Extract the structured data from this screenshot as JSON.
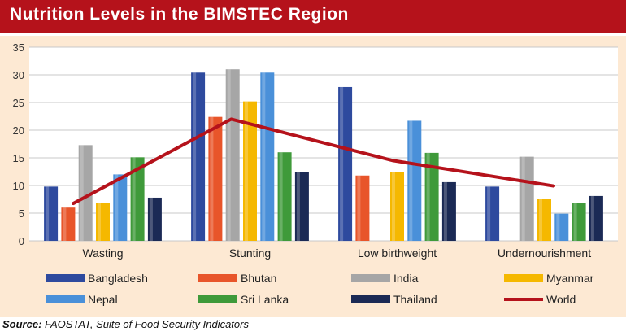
{
  "header": {
    "title": "Nutrition Levels in the BIMSTEC Region"
  },
  "source": {
    "label": "Source:",
    "text": " FAOSTAT, Suite of Food Security Indicators"
  },
  "chart_data": {
    "type": "bar",
    "categories": [
      "Wasting",
      "Stunting",
      "Low birthweight",
      "Undernourishment"
    ],
    "ylim": [
      0,
      35
    ],
    "yticks": [
      0,
      5,
      10,
      15,
      20,
      25,
      30,
      35
    ],
    "grid": true,
    "legend_position": "bottom",
    "series": [
      {
        "name": "Bangladesh",
        "color": "#2e4a9e",
        "values": [
          9.8,
          30.4,
          27.8,
          9.8
        ]
      },
      {
        "name": "Bhutan",
        "color": "#e8552a",
        "values": [
          6.0,
          22.4,
          11.8,
          null
        ]
      },
      {
        "name": "India",
        "color": "#a6a6a6",
        "values": [
          17.3,
          31.0,
          null,
          15.2
        ]
      },
      {
        "name": "Myanmar",
        "color": "#f5b800",
        "values": [
          6.8,
          25.2,
          12.4,
          7.6
        ]
      },
      {
        "name": "Nepal",
        "color": "#4a90d9",
        "values": [
          12.0,
          30.4,
          21.7,
          4.9
        ]
      },
      {
        "name": "Sri Lanka",
        "color": "#3f9a3a",
        "values": [
          15.1,
          16.0,
          15.9,
          6.9
        ]
      },
      {
        "name": "Thailand",
        "color": "#1b2a55",
        "values": [
          7.8,
          12.4,
          10.6,
          8.1
        ]
      }
    ],
    "line_series": {
      "name": "World",
      "color": "#b5121b",
      "values": [
        6.7,
        22.0,
        14.5,
        9.9
      ]
    }
  }
}
